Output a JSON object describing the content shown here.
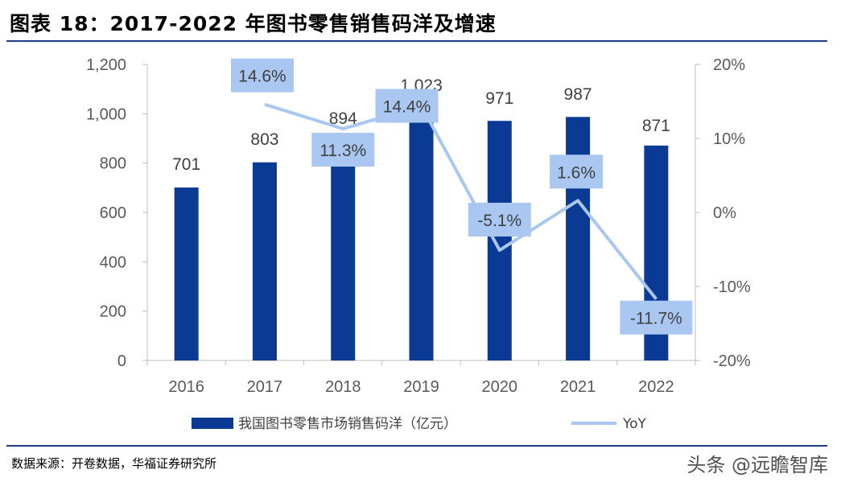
{
  "header": {
    "title": "图表 18：2017-2022 年图书零售销售码洋及增速"
  },
  "footer": {
    "source": "数据来源：开卷数据，华福证券研究所",
    "watermark": "头条 @远瞻智库"
  },
  "colors": {
    "bar": "#0a3a93",
    "line": "#a9c7f0",
    "label_box": "#a9c7f0",
    "rule": "#1f3a8a"
  },
  "chart_data": {
    "type": "bar",
    "categories": [
      "2016",
      "2017",
      "2018",
      "2019",
      "2020",
      "2021",
      "2022"
    ],
    "series": [
      {
        "name": "我国图书零售市场销售码洋（亿元）",
        "type": "bar",
        "axis": "left",
        "values": [
          701,
          803,
          894,
          1023,
          971,
          987,
          871
        ],
        "labels": [
          "701",
          "803",
          "894",
          "1,023",
          "971",
          "987",
          "871"
        ]
      },
      {
        "name": "YoY",
        "type": "line",
        "axis": "right",
        "values": [
          null,
          14.6,
          11.3,
          14.4,
          -5.1,
          1.6,
          -11.7
        ],
        "labels": [
          "",
          "14.6%",
          "11.3%",
          "14.4%",
          "-5.1%",
          "1.6%",
          "-11.7%"
        ]
      }
    ],
    "left_axis": {
      "ylim": [
        0,
        1200
      ],
      "ticks": [
        0,
        200,
        400,
        600,
        800,
        1000,
        1200
      ],
      "tick_labels": [
        "0",
        "200",
        "400",
        "600",
        "800",
        "1,000",
        "1,200"
      ]
    },
    "right_axis": {
      "ylim": [
        -20,
        20
      ],
      "ticks": [
        -20,
        -10,
        0,
        10,
        20
      ],
      "tick_labels": [
        "-20%",
        "-10%",
        "0%",
        "10%",
        "20%"
      ]
    },
    "grid": false,
    "legend_position": "bottom"
  }
}
